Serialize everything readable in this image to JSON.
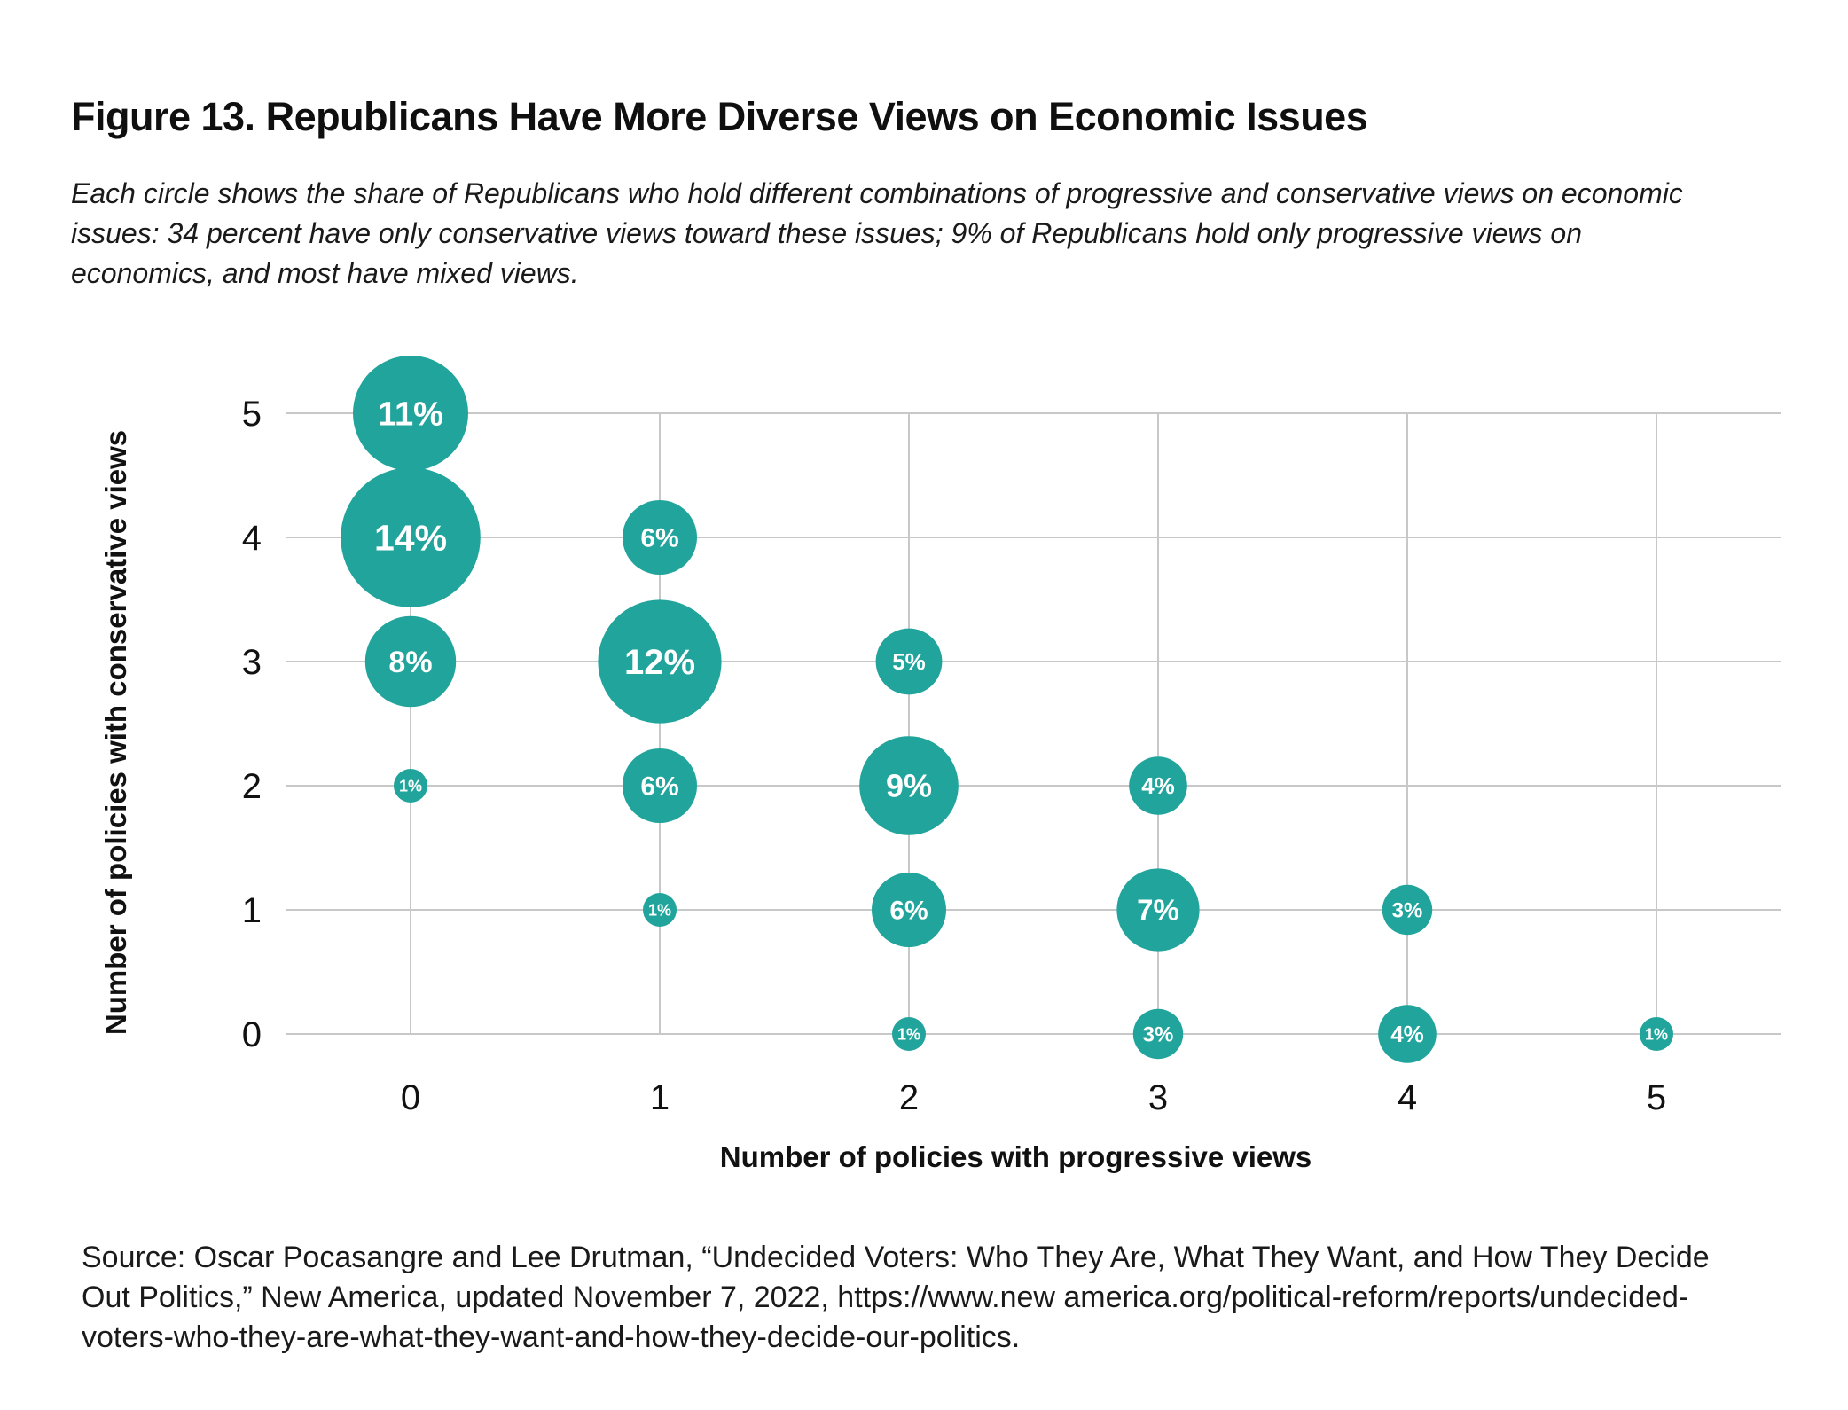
{
  "figure": {
    "title": "Figure 13. Republicans Have More Diverse Views on Economic Issues",
    "subtitle_lines": [
      "Each circle shows the share of Republicans who hold different combinations of progressive and conservative views on economic",
      "issues: 34 percent have only conservative views toward these issues; 9% of Republicans hold only progressive views on",
      "economics, and most have mixed views."
    ],
    "source_lines": [
      "Source: Oscar Pocasangre and Lee Drutman, “Undecided Voters: Who They Are, What They Want, and How They Decide",
      "Out Politics,” New America, updated November 7, 2022, https://www.new america.org/political-reform/reports/undecided-",
      "voters-who-they-are-what-they-want-and-how-they-decide-our-politics."
    ]
  },
  "colors": {
    "bubble": "#20A49B",
    "bubble_label": "#ffffff",
    "gridline": "#c8c8c8",
    "axis_text": "#111111",
    "background": "#ffffff"
  },
  "chart_data": {
    "type": "scatter",
    "subtype": "bubble",
    "title": "",
    "xlabel": "Number of policies with progressive views",
    "ylabel": "Number of policies with conservative views",
    "x_tick_labels": [
      "0",
      "1",
      "2",
      "3",
      "4",
      "5"
    ],
    "y_tick_labels": [
      "0",
      "1",
      "2",
      "3",
      "4",
      "5"
    ],
    "x_range": [
      -0.5,
      5.5
    ],
    "y_range": [
      0,
      5
    ],
    "grid": true,
    "legend": false,
    "label_format": "percent",
    "points": [
      {
        "x": 0,
        "y": 5,
        "value": 11,
        "label": "11%"
      },
      {
        "x": 0,
        "y": 4,
        "value": 14,
        "label": "14%"
      },
      {
        "x": 0,
        "y": 3,
        "value": 8,
        "label": "8%"
      },
      {
        "x": 0,
        "y": 2,
        "value": 1,
        "label": "1%"
      },
      {
        "x": 1,
        "y": 4,
        "value": 6,
        "label": "6%"
      },
      {
        "x": 1,
        "y": 3,
        "value": 12,
        "label": "12%"
      },
      {
        "x": 1,
        "y": 2,
        "value": 6,
        "label": "6%"
      },
      {
        "x": 1,
        "y": 1,
        "value": 1,
        "label": "1%"
      },
      {
        "x": 2,
        "y": 3,
        "value": 5,
        "label": "5%"
      },
      {
        "x": 2,
        "y": 2,
        "value": 9,
        "label": "9%"
      },
      {
        "x": 2,
        "y": 1,
        "value": 6,
        "label": "6%"
      },
      {
        "x": 2,
        "y": 0,
        "value": 1,
        "label": "1%"
      },
      {
        "x": 3,
        "y": 2,
        "value": 4,
        "label": "4%"
      },
      {
        "x": 3,
        "y": 1,
        "value": 7,
        "label": "7%"
      },
      {
        "x": 3,
        "y": 0,
        "value": 3,
        "label": "3%"
      },
      {
        "x": 4,
        "y": 1,
        "value": 3,
        "label": "3%"
      },
      {
        "x": 4,
        "y": 0,
        "value": 4,
        "label": "4%"
      },
      {
        "x": 5,
        "y": 0,
        "value": 1,
        "label": "1%"
      }
    ]
  }
}
